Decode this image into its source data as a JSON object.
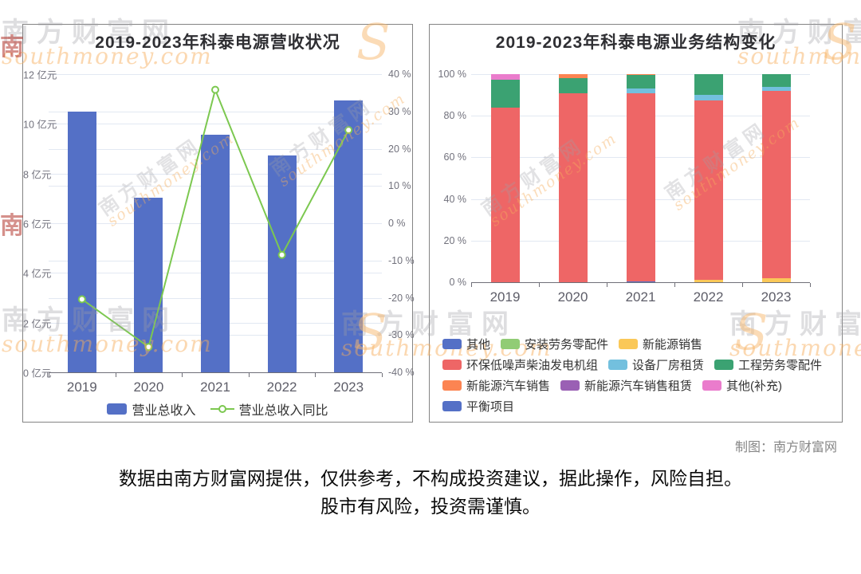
{
  "watermark": {
    "cn": "南方财富网",
    "en": "southmoney.com",
    "swash": "S",
    "seal": "南"
  },
  "footer": {
    "credit": "制图：南方财富网",
    "disclaimer_line1": "数据由南方财富网提供，仅供参考，不构成投资建议，据此操作，风险自担。",
    "disclaimer_line2": "股市有风险，投资需谨慎。"
  },
  "chart_data": [
    {
      "type": "bar",
      "subtype": "bar+line-dual-axis",
      "title": "2019-2023年科泰电源营收状况",
      "categories": [
        "2019",
        "2020",
        "2021",
        "2022",
        "2023"
      ],
      "series": [
        {
          "name": "营业总收入",
          "chart": "bar",
          "unit": "亿元",
          "color": "#5470C6",
          "values": [
            10.5,
            7.03,
            9.55,
            8.74,
            10.95
          ]
        },
        {
          "name": "营业总收入同比",
          "chart": "line",
          "unit": "%",
          "color": "#7CC850",
          "values": [
            -20.4,
            -33.2,
            35.8,
            -8.5,
            25.0
          ]
        }
      ],
      "y_left": {
        "tick_labels": [
          "12 亿元",
          "10 亿元",
          "8 亿元",
          "6 亿元",
          "4 亿元",
          "2 亿元",
          "0 亿元"
        ],
        "min": 0,
        "max": 12,
        "step": 2,
        "unit": "亿元"
      },
      "y_right": {
        "tick_labels": [
          "40 %",
          "30 %",
          "20 %",
          "10 %",
          "0 %",
          "-10 %",
          "-20 %",
          "-30 %",
          "-40 %"
        ],
        "min": -40,
        "max": 40,
        "step": 10,
        "unit": "%"
      },
      "grid": true,
      "legend_position": "bottom-center"
    },
    {
      "type": "bar",
      "subtype": "stacked-percent",
      "title": "2019-2023年科泰电源业务结构变化",
      "categories": [
        "2019",
        "2020",
        "2021",
        "2022",
        "2023"
      ],
      "y_axis": {
        "tick_labels": [
          "100 %",
          "80 %",
          "60 %",
          "40 %",
          "20 %",
          "0 %"
        ],
        "min": 0,
        "max": 100,
        "step": 20,
        "unit": "%"
      },
      "series": [
        {
          "name": "其他",
          "color": "#5470C6",
          "values": [
            0,
            0,
            0.3,
            0,
            0
          ]
        },
        {
          "name": "安装劳务零配件",
          "color": "#91CC75",
          "values": [
            0,
            0,
            0,
            0,
            0
          ]
        },
        {
          "name": "新能源销售",
          "color": "#FAC858",
          "values": [
            0,
            0,
            0,
            1,
            2
          ]
        },
        {
          "name": "环保低噪声柴油发电机组",
          "color": "#EE6666",
          "values": [
            84,
            91,
            90.7,
            86.5,
            90
          ]
        },
        {
          "name": "设备厂房租赁",
          "color": "#73C0DE",
          "values": [
            0,
            0,
            2,
            2.5,
            2
          ]
        },
        {
          "name": "工程劳务零配件",
          "color": "#3BA272",
          "values": [
            13.5,
            7,
            6.5,
            10,
            6
          ]
        },
        {
          "name": "新能源汽车销售",
          "color": "#FC8452",
          "values": [
            0,
            2,
            0.5,
            0,
            0
          ]
        },
        {
          "name": "新能源汽车销售租赁",
          "color": "#9A60B4",
          "values": [
            0,
            0,
            0,
            0,
            0
          ]
        },
        {
          "name": "其他(补充)",
          "color": "#EA7CCC",
          "values": [
            2.5,
            0,
            0,
            0,
            0
          ]
        },
        {
          "name": "平衡项目",
          "color": "#5470C6",
          "values": [
            0,
            0,
            0,
            0,
            0
          ]
        }
      ],
      "legend_rows": [
        [
          0,
          1,
          2
        ],
        [
          3,
          4,
          5
        ],
        [
          6,
          7,
          8
        ],
        [
          9
        ]
      ],
      "grid": true,
      "legend_position": "bottom-left"
    }
  ]
}
